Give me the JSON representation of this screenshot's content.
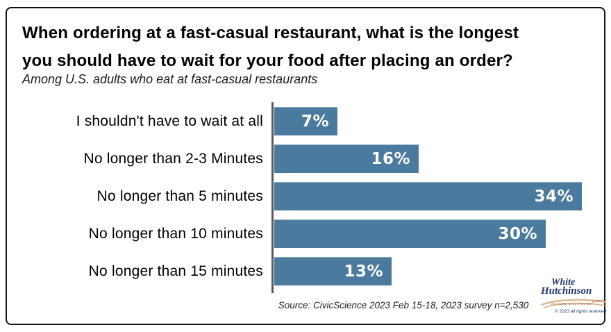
{
  "header": {
    "title_line1": "When ordering at a fast-casual restaurant, what is the longest",
    "title_line2": "you should have to wait for your food after placing an order?",
    "subtitle": "Among U.S. adults who eat at fast-casual restaurants"
  },
  "chart_data": {
    "type": "bar",
    "orientation": "horizontal",
    "title": "When ordering at a fast-casual restaurant, what is the longest you should have to wait for your food after placing an order?",
    "subtitle": "Among U.S. adults who eat at fast-casual restaurants",
    "categories": [
      "I shouldn't have to wait at all",
      "No longer than 2-3 Minutes",
      "No longer than 5 minutes",
      "No longer than 10 minutes",
      "No longer than 15 minutes"
    ],
    "values": [
      7,
      16,
      34,
      30,
      13
    ],
    "value_labels": [
      "7%",
      "16%",
      "34%",
      "30%",
      "13%"
    ],
    "unit": "percent",
    "xlim": [
      0,
      34
    ],
    "grid": false,
    "legend": false,
    "bar_color": "#4a7a9e",
    "axis_color": "#58595b",
    "value_label_color": "#ffffff"
  },
  "footer": {
    "source": "Source: CivicScience 2023 Feb 15-18, 2023 survey n=2,530"
  },
  "logo": {
    "line1": "White",
    "line2": "Hutchinson",
    "tagline_left": "LEISURE & LEARNING",
    "tagline_right": "GROUP",
    "copyright": "© 2023 all rights reserved",
    "navy": "#22356e",
    "tan": "#d9b88f",
    "red": "#b3472f"
  }
}
